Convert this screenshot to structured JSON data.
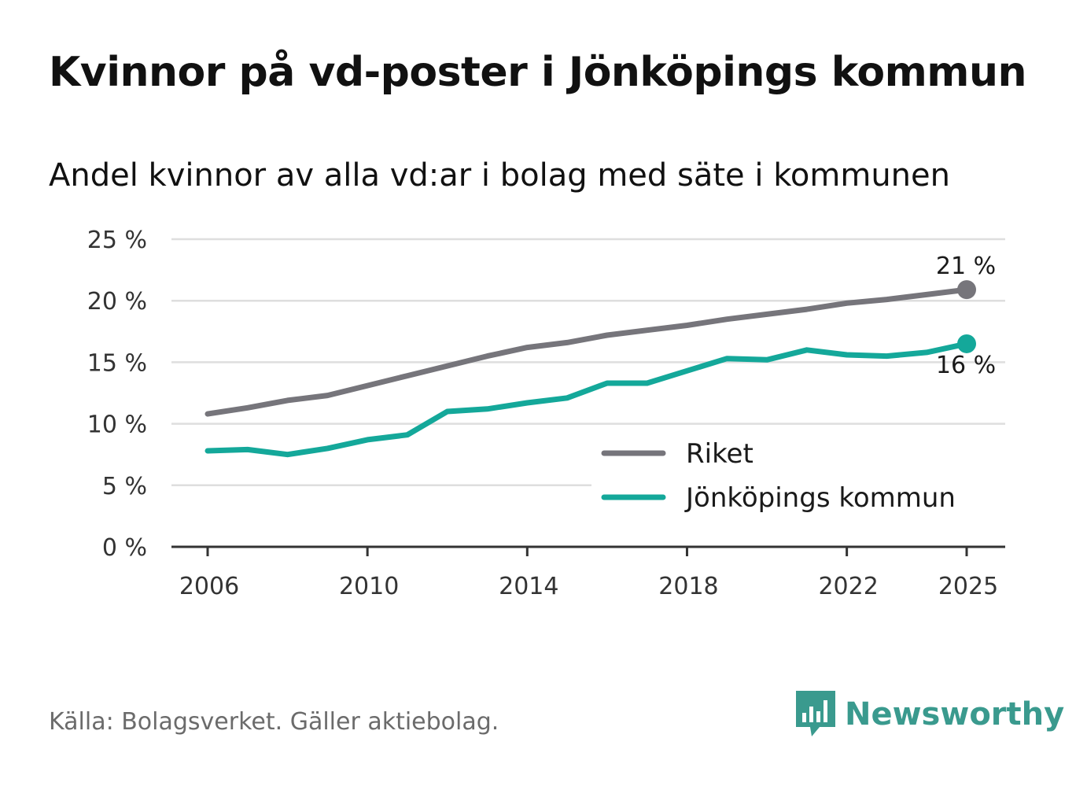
{
  "title": "Kvinnor på vd-poster i Jönköpings kommun",
  "subtitle": "Andel kvinnor av alla vd:ar i bolag med säte i kommunen",
  "source": "Källa: Bolagsverket. Gäller aktiebolag.",
  "brand": {
    "name": "Newsworthy",
    "icon": "newsworthy-logo-icon"
  },
  "colors": {
    "riket": "#76757b",
    "kommun": "#14a89a",
    "grid": "#dedede",
    "axis": "#333333"
  },
  "chart_data": {
    "type": "line",
    "title": "Andel kvinnor av alla vd:ar i bolag med säte i kommunen",
    "xlabel": "",
    "ylabel": "",
    "x": [
      2006,
      2007,
      2008,
      2009,
      2010,
      2011,
      2012,
      2013,
      2014,
      2015,
      2016,
      2017,
      2018,
      2019,
      2020,
      2021,
      2022,
      2023,
      2024,
      2025
    ],
    "xlim": [
      2006,
      2025
    ],
    "ylim": [
      0,
      25
    ],
    "x_ticks": [
      2006,
      2010,
      2014,
      2018,
      2022,
      2025
    ],
    "x_tick_labels": [
      "2006",
      "2010",
      "2014",
      "2018",
      "2022",
      "2025"
    ],
    "y_ticks": [
      0,
      5,
      10,
      15,
      20,
      25
    ],
    "y_tick_labels": [
      "0 %",
      "5 %",
      "10 %",
      "15 %",
      "20 %",
      "25 %"
    ],
    "grid": true,
    "legend_position": "bottom-right",
    "series": [
      {
        "name": "Riket",
        "color": "#76757b",
        "values": [
          10.8,
          11.3,
          11.9,
          12.3,
          13.1,
          13.9,
          14.7,
          15.5,
          16.2,
          16.6,
          17.2,
          17.6,
          18.0,
          18.5,
          18.9,
          19.3,
          19.8,
          20.1,
          20.5,
          20.9
        ],
        "end_label": "21 %"
      },
      {
        "name": "Jönköpings kommun",
        "color": "#14a89a",
        "values": [
          7.8,
          7.9,
          7.5,
          8.0,
          8.7,
          9.1,
          11.0,
          11.2,
          11.7,
          12.1,
          13.3,
          13.3,
          14.3,
          15.3,
          15.2,
          16.0,
          15.6,
          15.5,
          15.8,
          16.5
        ],
        "end_label": "16 %"
      }
    ]
  }
}
